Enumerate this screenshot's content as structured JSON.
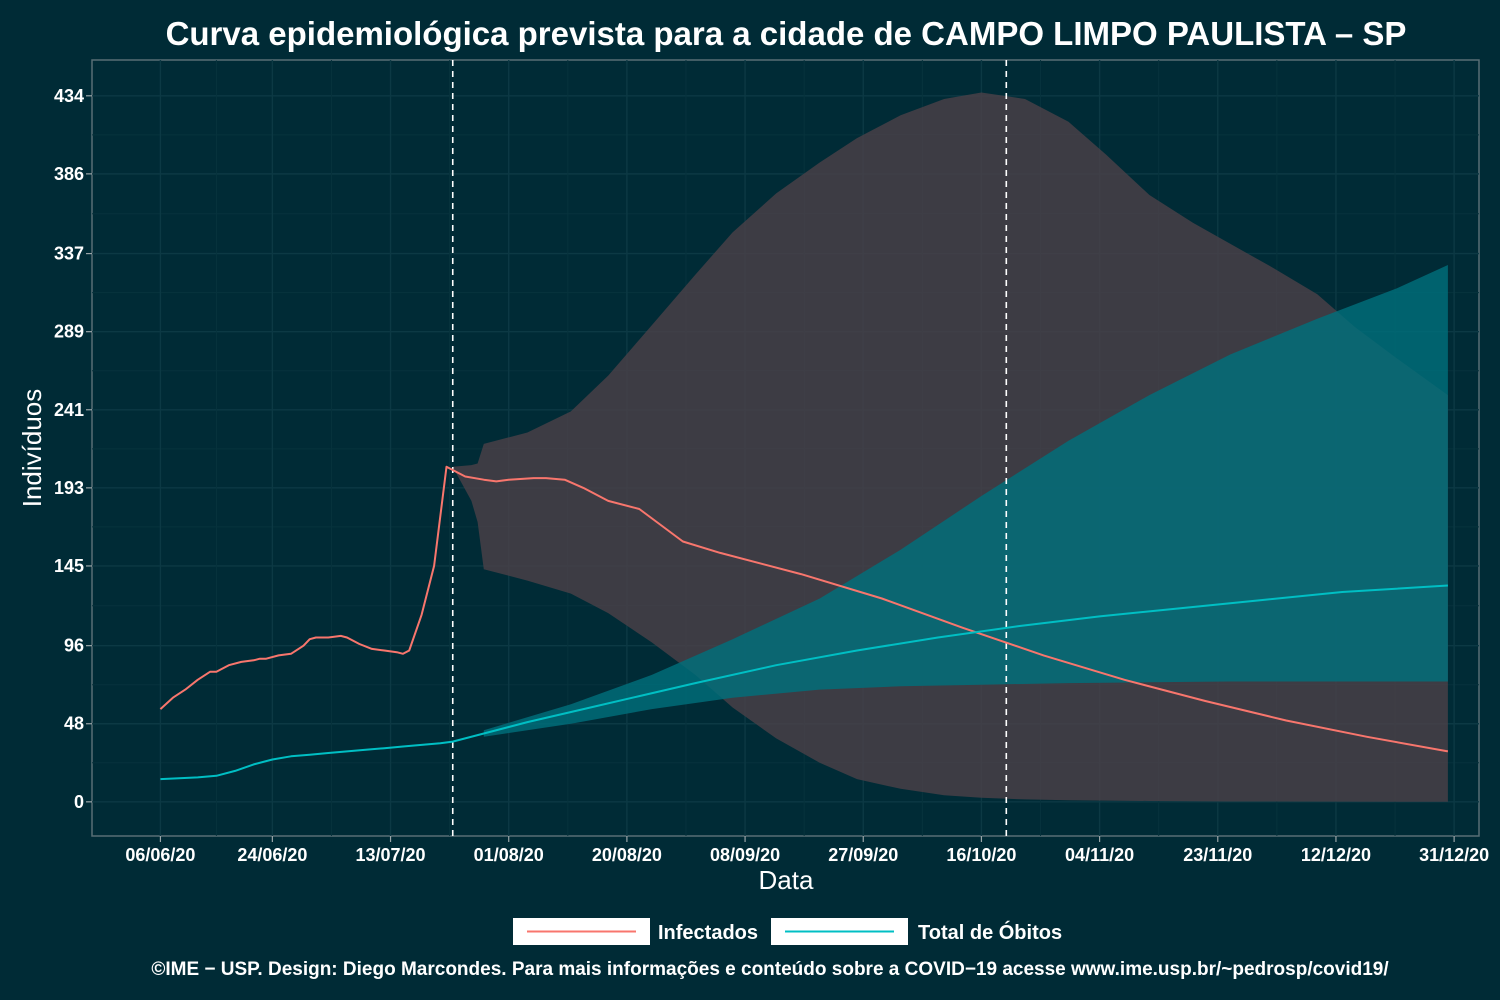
{
  "chart_data": {
    "type": "line",
    "title": "Curva epidemiológica prevista para a cidade de CAMPO LIMPO PAULISTA – SP",
    "xlabel": "Data",
    "ylabel": "Indivíduos",
    "x_ticks": [
      "06/06/20",
      "24/06/20",
      "13/07/20",
      "01/08/20",
      "20/08/20",
      "08/09/20",
      "27/09/20",
      "16/10/20",
      "04/11/20",
      "23/11/20",
      "12/12/20",
      "31/12/20"
    ],
    "y_ticks": [
      0,
      48,
      96,
      145,
      193,
      241,
      289,
      337,
      386,
      434
    ],
    "xlim": [
      "2020-05-26",
      "2021-01-04"
    ],
    "ylim": [
      -21,
      456
    ],
    "vlines": [
      "2020-07-23",
      "2020-10-20"
    ],
    "series": [
      {
        "name": "Infectados",
        "color": "#f8766d",
        "points": [
          [
            "2020-06-06",
            57
          ],
          [
            "2020-06-08",
            64
          ],
          [
            "2020-06-10",
            69
          ],
          [
            "2020-06-12",
            75
          ],
          [
            "2020-06-14",
            80
          ],
          [
            "2020-06-15",
            80
          ],
          [
            "2020-06-17",
            84
          ],
          [
            "2020-06-19",
            86
          ],
          [
            "2020-06-21",
            87
          ],
          [
            "2020-06-22",
            88
          ],
          [
            "2020-06-23",
            88
          ],
          [
            "2020-06-25",
            90
          ],
          [
            "2020-06-27",
            91
          ],
          [
            "2020-06-29",
            96
          ],
          [
            "2020-06-30",
            100
          ],
          [
            "2020-07-01",
            101
          ],
          [
            "2020-07-03",
            101
          ],
          [
            "2020-07-05",
            102
          ],
          [
            "2020-07-06",
            101
          ],
          [
            "2020-07-08",
            97
          ],
          [
            "2020-07-10",
            94
          ],
          [
            "2020-07-12",
            93
          ],
          [
            "2020-07-14",
            92
          ],
          [
            "2020-07-15",
            91
          ],
          [
            "2020-07-16",
            93
          ],
          [
            "2020-07-18",
            115
          ],
          [
            "2020-07-20",
            145
          ],
          [
            "2020-07-22",
            206
          ],
          [
            "2020-07-23",
            204
          ],
          [
            "2020-07-25",
            200
          ],
          [
            "2020-07-28",
            198
          ],
          [
            "2020-07-30",
            197
          ],
          [
            "2020-08-01",
            198
          ],
          [
            "2020-08-05",
            199
          ],
          [
            "2020-08-07",
            199
          ],
          [
            "2020-08-10",
            198
          ],
          [
            "2020-08-13",
            193
          ],
          [
            "2020-08-17",
            185
          ],
          [
            "2020-08-22",
            180
          ],
          [
            "2020-08-29",
            160
          ],
          [
            "2020-09-04",
            153
          ],
          [
            "2020-09-17",
            140
          ],
          [
            "2020-09-30",
            125
          ],
          [
            "2020-10-13",
            107
          ],
          [
            "2020-10-26",
            90
          ],
          [
            "2020-11-08",
            75
          ],
          [
            "2020-11-21",
            62
          ],
          [
            "2020-12-04",
            50
          ],
          [
            "2020-12-17",
            40
          ],
          [
            "2020-12-30",
            31
          ]
        ]
      },
      {
        "name": "Total de Óbitos",
        "color": "#00bfc4",
        "points": [
          [
            "2020-06-06",
            14
          ],
          [
            "2020-06-12",
            15
          ],
          [
            "2020-06-15",
            16
          ],
          [
            "2020-06-18",
            19
          ],
          [
            "2020-06-21",
            23
          ],
          [
            "2020-06-24",
            26
          ],
          [
            "2020-06-27",
            28
          ],
          [
            "2020-06-30",
            29
          ],
          [
            "2020-07-03",
            30
          ],
          [
            "2020-07-06",
            31
          ],
          [
            "2020-07-09",
            32
          ],
          [
            "2020-07-12",
            33
          ],
          [
            "2020-07-15",
            34
          ],
          [
            "2020-07-18",
            35
          ],
          [
            "2020-07-21",
            36
          ],
          [
            "2020-07-23",
            37
          ],
          [
            "2020-07-28",
            42
          ],
          [
            "2020-08-04",
            49
          ],
          [
            "2020-08-13",
            57
          ],
          [
            "2020-08-22",
            65
          ],
          [
            "2020-08-31",
            73
          ],
          [
            "2020-09-13",
            84
          ],
          [
            "2020-09-26",
            93
          ],
          [
            "2020-10-09",
            101
          ],
          [
            "2020-10-22",
            108
          ],
          [
            "2020-11-04",
            114
          ],
          [
            "2020-11-17",
            119
          ],
          [
            "2020-11-30",
            124
          ],
          [
            "2020-12-13",
            129
          ],
          [
            "2020-12-30",
            133
          ]
        ]
      }
    ],
    "bands": [
      {
        "of": "Infectados",
        "color": "#4a4148",
        "upper": [
          [
            "2020-07-23",
            206
          ],
          [
            "2020-07-26",
            207
          ],
          [
            "2020-07-27",
            208
          ],
          [
            "2020-07-28",
            220
          ],
          [
            "2020-08-04",
            227
          ],
          [
            "2020-08-11",
            240
          ],
          [
            "2020-08-17",
            262
          ],
          [
            "2020-08-24",
            293
          ],
          [
            "2020-08-31",
            324
          ],
          [
            "2020-09-06",
            350
          ],
          [
            "2020-09-13",
            374
          ],
          [
            "2020-09-20",
            393
          ],
          [
            "2020-09-26",
            408
          ],
          [
            "2020-10-03",
            422
          ],
          [
            "2020-10-10",
            432
          ],
          [
            "2020-10-16",
            436
          ],
          [
            "2020-10-23",
            432
          ],
          [
            "2020-10-30",
            418
          ],
          [
            "2020-11-05",
            398
          ],
          [
            "2020-11-12",
            373
          ],
          [
            "2020-11-19",
            356
          ],
          [
            "2020-11-25",
            343
          ],
          [
            "2020-12-02",
            328
          ],
          [
            "2020-12-09",
            312
          ],
          [
            "2020-12-15",
            292
          ],
          [
            "2020-12-22",
            272
          ],
          [
            "2020-12-30",
            250
          ]
        ],
        "lower": [
          [
            "2020-07-23",
            206
          ],
          [
            "2020-07-26",
            185
          ],
          [
            "2020-07-27",
            172
          ],
          [
            "2020-07-28",
            143
          ],
          [
            "2020-08-04",
            136
          ],
          [
            "2020-08-11",
            128
          ],
          [
            "2020-08-17",
            116
          ],
          [
            "2020-08-24",
            98
          ],
          [
            "2020-08-31",
            78
          ],
          [
            "2020-09-06",
            58
          ],
          [
            "2020-09-13",
            39
          ],
          [
            "2020-09-20",
            24
          ],
          [
            "2020-09-26",
            14
          ],
          [
            "2020-10-03",
            8
          ],
          [
            "2020-10-10",
            4
          ],
          [
            "2020-10-16",
            2.5
          ],
          [
            "2020-10-23",
            1.5
          ],
          [
            "2020-10-30",
            1
          ],
          [
            "2020-11-12",
            0.5
          ],
          [
            "2020-11-25",
            0.2
          ],
          [
            "2020-12-30",
            0
          ]
        ]
      },
      {
        "of": "Total de Óbitos",
        "color": "#006f7b",
        "upper": [
          [
            "2020-07-28",
            44
          ],
          [
            "2020-08-11",
            60
          ],
          [
            "2020-08-24",
            78
          ],
          [
            "2020-09-06",
            100
          ],
          [
            "2020-09-20",
            125
          ],
          [
            "2020-10-03",
            155
          ],
          [
            "2020-10-16",
            188
          ],
          [
            "2020-10-30",
            222
          ],
          [
            "2020-11-12",
            250
          ],
          [
            "2020-11-25",
            275
          ],
          [
            "2020-12-09",
            297
          ],
          [
            "2020-12-22",
            316
          ],
          [
            "2020-12-30",
            330
          ]
        ],
        "lower": [
          [
            "2020-07-28",
            40
          ],
          [
            "2020-08-11",
            48
          ],
          [
            "2020-08-24",
            57
          ],
          [
            "2020-09-06",
            64
          ],
          [
            "2020-09-20",
            69
          ],
          [
            "2020-10-03",
            71
          ],
          [
            "2020-10-16",
            72
          ],
          [
            "2020-10-30",
            73
          ],
          [
            "2020-11-12",
            73.5
          ],
          [
            "2020-11-25",
            74
          ],
          [
            "2020-12-09",
            74
          ],
          [
            "2020-12-22",
            74
          ],
          [
            "2020-12-30",
            74
          ]
        ]
      }
    ],
    "legend": {
      "position": "bottom",
      "entries": [
        "Infectados",
        "Total de Óbitos"
      ]
    },
    "grid": true
  },
  "caption": "©IME − USP. Design: Diego Marcondes. Para mais informações e conteúdo sobre a COVID−19 acesse www.ime.usp.br/~pedrosp/covid19/"
}
